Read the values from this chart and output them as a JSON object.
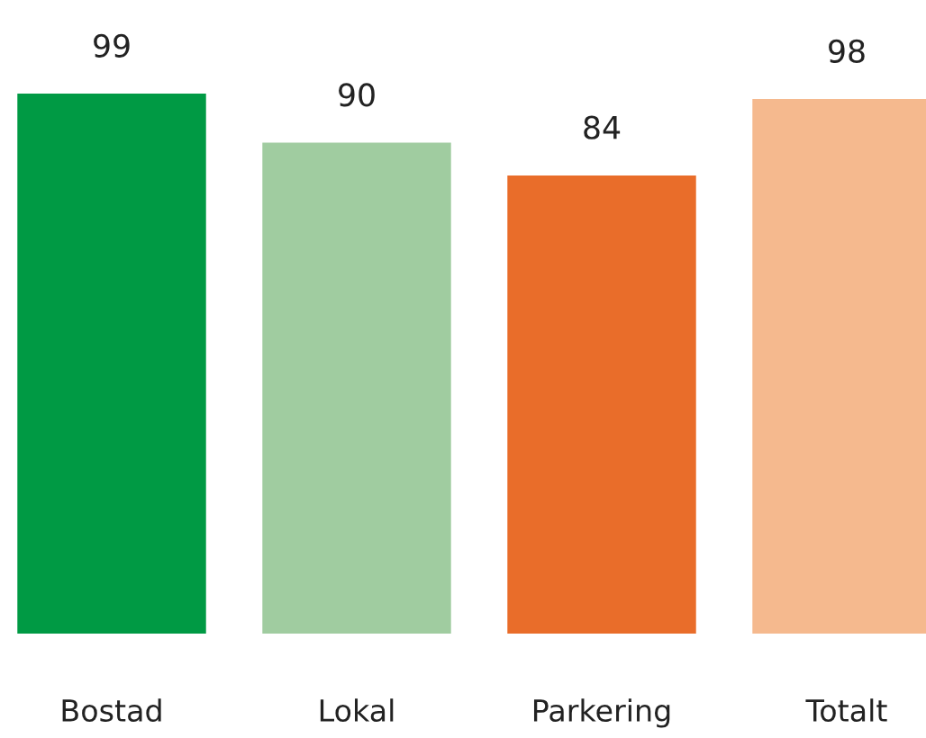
{
  "chart_data": {
    "type": "bar",
    "categories": [
      "Bostad",
      "Lokal",
      "Parkering",
      "Totalt"
    ],
    "values": [
      99,
      90,
      84,
      98
    ],
    "colors": [
      "#009a44",
      "#a0cca0",
      "#e96d2a",
      "#f5b98e"
    ],
    "data_labels": true,
    "tick_labels": "x",
    "grid": false,
    "legend": false
  }
}
